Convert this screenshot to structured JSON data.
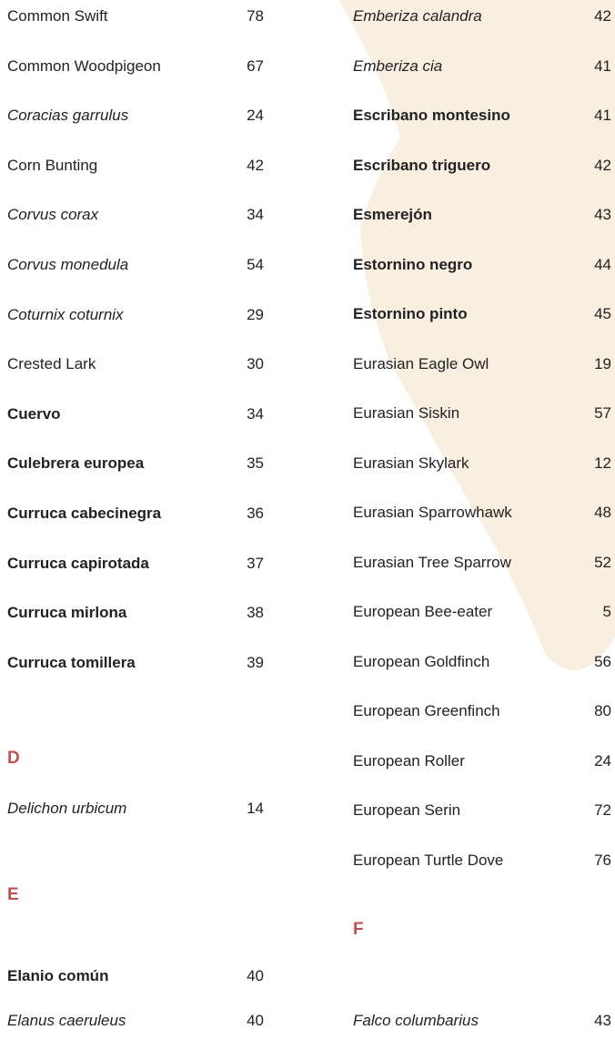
{
  "columns": [
    {
      "groups": [
        {
          "entries": [
            {
              "name": "Common Swift",
              "page": 78,
              "style": "regular"
            },
            {
              "name": "Common Woodpigeon",
              "page": 67,
              "style": "regular"
            },
            {
              "name": "Coracias garrulus",
              "page": 24,
              "style": "italic"
            },
            {
              "name": "Corn Bunting",
              "page": 42,
              "style": "regular"
            },
            {
              "name": "Corvus corax",
              "page": 34,
              "style": "italic"
            },
            {
              "name": "Corvus monedula",
              "page": 54,
              "style": "italic"
            },
            {
              "name": "Coturnix coturnix",
              "page": 29,
              "style": "italic"
            },
            {
              "name": "Crested Lark",
              "page": 30,
              "style": "regular"
            },
            {
              "name": "Cuervo",
              "page": 34,
              "style": "bold"
            },
            {
              "name": "Culebrera europea",
              "page": 35,
              "style": "bold"
            },
            {
              "name": "Curruca cabecinegra",
              "page": 36,
              "style": "bold"
            },
            {
              "name": "Curruca capirotada",
              "page": 37,
              "style": "bold"
            },
            {
              "name": "Curruca mirlona",
              "page": 38,
              "style": "bold"
            },
            {
              "name": "Curruca tomillera",
              "page": 39,
              "style": "bold"
            }
          ]
        },
        {
          "letter": "D",
          "entries": [
            {
              "name": "Delichon urbicum",
              "page": 14,
              "style": "italic"
            }
          ]
        },
        {
          "letter": "E",
          "entries": [
            {
              "name": "Elanio común",
              "page": 40,
              "style": "bold"
            },
            {
              "name": "Elanus caeruleus",
              "page": 40,
              "style": "italic"
            }
          ]
        }
      ]
    },
    {
      "groups": [
        {
          "entries": [
            {
              "name": "Emberiza calandra",
              "page": 42,
              "style": "italic"
            },
            {
              "name": "Emberiza cia",
              "page": 41,
              "style": "italic"
            },
            {
              "name": "Escribano montesino",
              "page": 41,
              "style": "bold"
            },
            {
              "name": "Escribano triguero",
              "page": 42,
              "style": "bold"
            },
            {
              "name": "Esmerejón",
              "page": 43,
              "style": "bold"
            },
            {
              "name": "Estornino negro",
              "page": 44,
              "style": "bold"
            },
            {
              "name": "Estornino pinto",
              "page": 45,
              "style": "bold"
            },
            {
              "name": "Eurasian Eagle Owl",
              "page": 19,
              "style": "regular"
            },
            {
              "name": "Eurasian Siskin",
              "page": 57,
              "style": "regular"
            },
            {
              "name": "Eurasian Skylark",
              "page": 12,
              "style": "regular"
            },
            {
              "name": "Eurasian Sparrowhawk",
              "page": 48,
              "style": "regular"
            },
            {
              "name": "Eurasian Tree Sparrow",
              "page": 52,
              "style": "regular"
            },
            {
              "name": "European Bee-eater",
              "page": 5,
              "style": "regular"
            },
            {
              "name": "European Goldfinch",
              "page": 56,
              "style": "regular"
            },
            {
              "name": "European Greenfinch",
              "page": 80,
              "style": "regular"
            },
            {
              "name": "European Roller",
              "page": 24,
              "style": "regular"
            },
            {
              "name": "European Serin",
              "page": 72,
              "style": "regular"
            },
            {
              "name": "European Turtle Dove",
              "page": 76,
              "style": "regular"
            }
          ]
        },
        {
          "letter": "F",
          "entries": [
            {
              "name": "Falco columbarius",
              "page": 43,
              "style": "italic"
            }
          ]
        }
      ]
    }
  ]
}
